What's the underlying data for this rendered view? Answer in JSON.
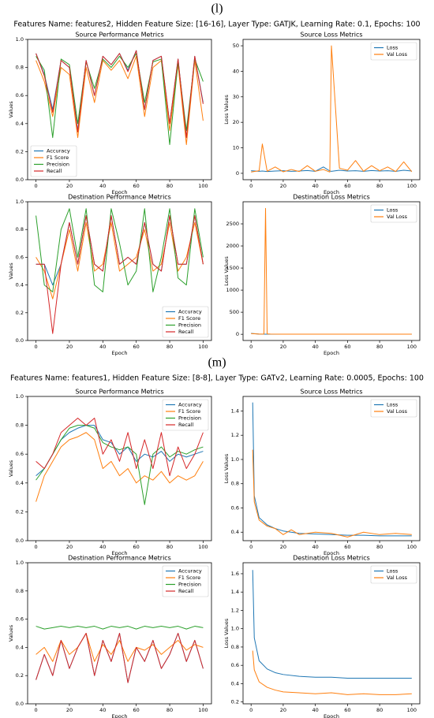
{
  "panels": [
    {
      "label": "(l)",
      "title": "Features Name: features2, Hidden Feature Size: [16-16], Layer Type: GATJK, Learning Rate: 0.1, Epochs: 100"
    },
    {
      "label": "(m)",
      "title": "Features Name: features1, Hidden Feature Size: [8-8], Layer Type: GATv2, Learning Rate: 0.0005, Epochs: 100"
    }
  ],
  "chart_data": [
    {
      "type": "line",
      "title": "Source Performance Metrics",
      "xlabel": "Epoch",
      "ylabel": "Values",
      "legend": "lower left",
      "xlim": [
        -5,
        105
      ],
      "xticks": [
        0,
        20,
        40,
        60,
        80,
        100
      ],
      "ylim": [
        0,
        1
      ],
      "yticks": [
        {
          "value": 0,
          "label": "0.0"
        },
        0.2,
        0.4,
        0.6,
        0.8,
        {
          "value": 1,
          "label": "1.0"
        }
      ],
      "x": [
        0,
        5,
        10,
        15,
        20,
        25,
        30,
        35,
        40,
        45,
        50,
        55,
        60,
        65,
        70,
        75,
        80,
        85,
        90,
        95,
        100
      ],
      "series": [
        {
          "name": "Accuracy",
          "color": "#1f77b4",
          "values": [
            0.9,
            0.75,
            0.5,
            0.85,
            0.8,
            0.35,
            0.85,
            0.6,
            0.88,
            0.82,
            0.9,
            0.78,
            0.92,
            0.5,
            0.85,
            0.88,
            0.4,
            0.86,
            0.3,
            0.88,
            0.55
          ]
        },
        {
          "name": "F1 Score",
          "color": "#ff7f0e",
          "values": [
            0.85,
            0.7,
            0.45,
            0.8,
            0.75,
            0.3,
            0.8,
            0.55,
            0.85,
            0.78,
            0.85,
            0.72,
            0.88,
            0.45,
            0.8,
            0.85,
            0.35,
            0.82,
            0.25,
            0.85,
            0.42
          ]
        },
        {
          "name": "Precision",
          "color": "#2ca02c",
          "values": [
            0.88,
            0.78,
            0.3,
            0.86,
            0.82,
            0.4,
            0.84,
            0.65,
            0.86,
            0.8,
            0.88,
            0.8,
            0.9,
            0.55,
            0.84,
            0.86,
            0.25,
            0.84,
            0.35,
            0.86,
            0.7
          ]
        },
        {
          "name": "Recall",
          "color": "#d62728",
          "values": [
            0.9,
            0.74,
            0.48,
            0.85,
            0.8,
            0.34,
            0.85,
            0.6,
            0.88,
            0.82,
            0.9,
            0.77,
            0.92,
            0.5,
            0.85,
            0.88,
            0.4,
            0.86,
            0.3,
            0.88,
            0.54
          ]
        }
      ]
    },
    {
      "type": "line",
      "title": "Source Loss Metrics",
      "xlabel": "Epoch",
      "ylabel": "Loss Values",
      "legend": "upper right",
      "xlim": [
        -5,
        105
      ],
      "xticks": [
        0,
        20,
        40,
        60,
        80,
        100
      ],
      "ylim": [
        -2.5,
        52.5
      ],
      "yticks": [
        0,
        10,
        20,
        30,
        40,
        50
      ],
      "x": [
        0,
        5,
        7,
        10,
        15,
        20,
        25,
        30,
        35,
        40,
        45,
        49,
        50,
        55,
        60,
        65,
        70,
        75,
        80,
        85,
        90,
        95,
        100
      ],
      "series": [
        {
          "name": "Loss",
          "color": "#1f77b4",
          "values": [
            1,
            0.8,
            0.9,
            0.7,
            0.9,
            1.0,
            0.8,
            0.9,
            1.1,
            0.8,
            2.5,
            0.9,
            0.8,
            1.2,
            0.9,
            1.0,
            0.8,
            1.1,
            0.9,
            1.0,
            0.8,
            1.2,
            0.9
          ]
        },
        {
          "name": "Val Loss",
          "color": "#ff7f0e",
          "values": [
            0.5,
            1,
            11.5,
            0.8,
            2.5,
            0.6,
            1.5,
            0.7,
            3,
            0.8,
            1.5,
            0.5,
            50,
            2,
            1.2,
            5,
            0.8,
            3,
            1,
            2.5,
            0.7,
            4.5,
            0.6
          ]
        }
      ]
    },
    {
      "type": "line",
      "title": "Destination Performance Metrics",
      "xlabel": "Epoch",
      "ylabel": "Values",
      "legend": "lower right",
      "xlim": [
        -5,
        105
      ],
      "xticks": [
        0,
        20,
        40,
        60,
        80,
        100
      ],
      "ylim": [
        0,
        1
      ],
      "yticks": [
        {
          "value": 0,
          "label": "0.0"
        },
        0.2,
        0.4,
        0.6,
        0.8,
        {
          "value": 1,
          "label": "1.0"
        }
      ],
      "x": [
        0,
        5,
        10,
        15,
        20,
        25,
        30,
        35,
        40,
        45,
        50,
        55,
        60,
        65,
        70,
        75,
        80,
        85,
        90,
        95,
        100
      ],
      "series": [
        {
          "name": "Accuracy",
          "color": "#1f77b4",
          "values": [
            0.55,
            0.55,
            0.4,
            0.55,
            0.85,
            0.55,
            0.9,
            0.55,
            0.5,
            0.9,
            0.55,
            0.6,
            0.55,
            0.85,
            0.55,
            0.5,
            0.9,
            0.55,
            0.55,
            0.9,
            0.55
          ]
        },
        {
          "name": "F1 Score",
          "color": "#ff7f0e",
          "values": [
            0.6,
            0.5,
            0.3,
            0.55,
            0.8,
            0.5,
            0.85,
            0.5,
            0.55,
            0.85,
            0.5,
            0.55,
            0.6,
            0.8,
            0.5,
            0.55,
            0.85,
            0.5,
            0.6,
            0.85,
            0.55
          ]
        },
        {
          "name": "Precision",
          "color": "#2ca02c",
          "values": [
            0.9,
            0.4,
            0.35,
            0.8,
            0.95,
            0.6,
            0.95,
            0.4,
            0.35,
            0.95,
            0.7,
            0.4,
            0.5,
            0.95,
            0.35,
            0.6,
            0.95,
            0.45,
            0.4,
            0.95,
            0.6
          ]
        },
        {
          "name": "Recall",
          "color": "#d62728",
          "values": [
            0.55,
            0.55,
            0.05,
            0.55,
            0.85,
            0.55,
            0.9,
            0.55,
            0.5,
            0.9,
            0.55,
            0.6,
            0.55,
            0.85,
            0.55,
            0.5,
            0.9,
            0.55,
            0.55,
            0.9,
            0.55
          ]
        }
      ]
    },
    {
      "type": "line",
      "title": "Destination Loss Metrics",
      "xlabel": "Epoch",
      "ylabel": "Loss Values",
      "legend": "upper right",
      "xlim": [
        -5,
        105
      ],
      "xticks": [
        0,
        20,
        40,
        60,
        80,
        100
      ],
      "ylim": [
        -140,
        3000
      ],
      "yticks": [
        0,
        500,
        1000,
        1500,
        2000,
        2500
      ],
      "x": [
        0,
        5,
        8,
        9,
        10,
        12,
        20,
        30,
        40,
        50,
        60,
        70,
        80,
        90,
        100
      ],
      "series": [
        {
          "name": "Loss",
          "color": "#1f77b4",
          "values": [
            20,
            5,
            3,
            3,
            3,
            3,
            3,
            3,
            3,
            3,
            3,
            3,
            3,
            3,
            3
          ]
        },
        {
          "name": "Val Loss",
          "color": "#ff7f0e",
          "values": [
            15,
            5,
            4,
            2850,
            10,
            4,
            3,
            3,
            3,
            3,
            3,
            3,
            3,
            3,
            3
          ]
        }
      ]
    },
    {
      "type": "line",
      "title": "Source Performance Metrics",
      "xlabel": "Epoch",
      "ylabel": "Values",
      "legend": "upper right",
      "xlim": [
        -5,
        105
      ],
      "xticks": [
        0,
        20,
        40,
        60,
        80,
        100
      ],
      "ylim": [
        0,
        1
      ],
      "yticks": [
        {
          "value": 0,
          "label": "0.0"
        },
        0.2,
        0.4,
        0.6,
        0.8,
        {
          "value": 1,
          "label": "1.0"
        }
      ],
      "x": [
        0,
        5,
        10,
        15,
        20,
        25,
        30,
        35,
        40,
        45,
        50,
        55,
        60,
        65,
        70,
        75,
        80,
        85,
        90,
        95,
        100
      ],
      "series": [
        {
          "name": "Accuracy",
          "color": "#1f77b4",
          "values": [
            0.45,
            0.5,
            0.6,
            0.7,
            0.75,
            0.78,
            0.8,
            0.8,
            0.7,
            0.68,
            0.6,
            0.65,
            0.55,
            0.6,
            0.58,
            0.62,
            0.55,
            0.6,
            0.58,
            0.6,
            0.62
          ]
        },
        {
          "name": "F1 Score",
          "color": "#ff7f0e",
          "values": [
            0.27,
            0.45,
            0.55,
            0.65,
            0.7,
            0.72,
            0.75,
            0.7,
            0.5,
            0.55,
            0.45,
            0.5,
            0.4,
            0.45,
            0.42,
            0.48,
            0.4,
            0.45,
            0.42,
            0.45,
            0.55
          ]
        },
        {
          "name": "Precision",
          "color": "#2ca02c",
          "values": [
            0.42,
            0.5,
            0.6,
            0.7,
            0.78,
            0.8,
            0.8,
            0.78,
            0.68,
            0.65,
            0.63,
            0.65,
            0.6,
            0.25,
            0.6,
            0.65,
            0.58,
            0.62,
            0.6,
            0.63,
            0.65
          ]
        },
        {
          "name": "Recall",
          "color": "#d62728",
          "values": [
            0.55,
            0.5,
            0.6,
            0.75,
            0.8,
            0.85,
            0.8,
            0.85,
            0.6,
            0.7,
            0.55,
            0.75,
            0.5,
            0.7,
            0.5,
            0.75,
            0.45,
            0.65,
            0.5,
            0.6,
            0.75
          ]
        }
      ]
    },
    {
      "type": "line",
      "title": "Source Loss Metrics",
      "xlabel": "Epoch",
      "ylabel": "Loss Values",
      "legend": "upper right",
      "xlim": [
        -5,
        105
      ],
      "xticks": [
        0,
        20,
        40,
        60,
        80,
        100
      ],
      "ylim": [
        0.33,
        1.52
      ],
      "yticks": [
        0.4,
        0.6,
        0.8,
        {
          "value": 1,
          "label": "1.0"
        },
        1.2,
        1.4
      ],
      "x": [
        1,
        2,
        5,
        10,
        15,
        20,
        25,
        30,
        40,
        50,
        60,
        70,
        80,
        90,
        100
      ],
      "series": [
        {
          "name": "Loss",
          "color": "#1f77b4",
          "values": [
            1.47,
            0.7,
            0.52,
            0.46,
            0.43,
            0.41,
            0.4,
            0.39,
            0.385,
            0.38,
            0.375,
            0.375,
            0.37,
            0.37,
            0.37
          ]
        },
        {
          "name": "Val Loss",
          "color": "#ff7f0e",
          "values": [
            1.08,
            0.65,
            0.5,
            0.45,
            0.43,
            0.38,
            0.42,
            0.38,
            0.4,
            0.39,
            0.36,
            0.4,
            0.38,
            0.39,
            0.38
          ]
        }
      ]
    },
    {
      "type": "line",
      "title": "Destination Performance Metrics",
      "xlabel": "Epoch",
      "ylabel": "Values",
      "legend": "upper right",
      "xlim": [
        -5,
        105
      ],
      "xticks": [
        0,
        20,
        40,
        60,
        80,
        100
      ],
      "ylim": [
        0,
        1
      ],
      "yticks": [
        {
          "value": 0,
          "label": "0.0"
        },
        0.2,
        0.4,
        0.6,
        0.8,
        {
          "value": 1,
          "label": "1.0"
        }
      ],
      "x": [
        0,
        5,
        10,
        15,
        20,
        25,
        30,
        35,
        40,
        45,
        50,
        55,
        60,
        65,
        70,
        75,
        80,
        85,
        90,
        95,
        100
      ],
      "series": [
        {
          "name": "Accuracy",
          "color": "#1f77b4",
          "values": [
            0.17,
            0.35,
            0.2,
            0.45,
            0.25,
            0.4,
            0.5,
            0.2,
            0.45,
            0.3,
            0.5,
            0.15,
            0.4,
            0.3,
            0.45,
            0.25,
            0.35,
            0.5,
            0.3,
            0.45,
            0.25
          ]
        },
        {
          "name": "F1 Score",
          "color": "#ff7f0e",
          "values": [
            0.35,
            0.4,
            0.3,
            0.45,
            0.35,
            0.4,
            0.5,
            0.3,
            0.42,
            0.35,
            0.45,
            0.3,
            0.4,
            0.38,
            0.42,
            0.35,
            0.4,
            0.45,
            0.38,
            0.42,
            0.4
          ]
        },
        {
          "name": "Precision",
          "color": "#2ca02c",
          "values": [
            0.55,
            0.53,
            0.54,
            0.55,
            0.54,
            0.55,
            0.54,
            0.55,
            0.53,
            0.55,
            0.54,
            0.55,
            0.53,
            0.55,
            0.54,
            0.55,
            0.54,
            0.55,
            0.53,
            0.55,
            0.54
          ]
        },
        {
          "name": "Recall",
          "color": "#d62728",
          "values": [
            0.17,
            0.35,
            0.2,
            0.45,
            0.25,
            0.4,
            0.5,
            0.2,
            0.45,
            0.3,
            0.5,
            0.15,
            0.4,
            0.3,
            0.45,
            0.25,
            0.35,
            0.5,
            0.3,
            0.45,
            0.25
          ]
        }
      ]
    },
    {
      "type": "line",
      "title": "Destination Loss Metrics",
      "xlabel": "Epoch",
      "ylabel": "Loss Values",
      "legend": "upper right",
      "xlim": [
        -5,
        105
      ],
      "xticks": [
        0,
        20,
        40,
        60,
        80,
        100
      ],
      "ylim": [
        0.18,
        1.72
      ],
      "yticks": [
        0.2,
        0.4,
        0.6,
        0.8,
        {
          "value": 1,
          "label": "1.0"
        },
        1.2,
        1.4,
        1.6
      ],
      "x": [
        1,
        2,
        5,
        10,
        15,
        20,
        30,
        40,
        50,
        60,
        70,
        80,
        90,
        100
      ],
      "series": [
        {
          "name": "Loss",
          "color": "#1f77b4",
          "values": [
            1.64,
            0.9,
            0.65,
            0.56,
            0.52,
            0.5,
            0.48,
            0.47,
            0.47,
            0.46,
            0.46,
            0.46,
            0.46,
            0.46
          ]
        },
        {
          "name": "Val Loss",
          "color": "#ff7f0e",
          "values": [
            0.76,
            0.55,
            0.42,
            0.36,
            0.33,
            0.31,
            0.3,
            0.29,
            0.3,
            0.28,
            0.29,
            0.28,
            0.28,
            0.29
          ]
        }
      ]
    }
  ]
}
